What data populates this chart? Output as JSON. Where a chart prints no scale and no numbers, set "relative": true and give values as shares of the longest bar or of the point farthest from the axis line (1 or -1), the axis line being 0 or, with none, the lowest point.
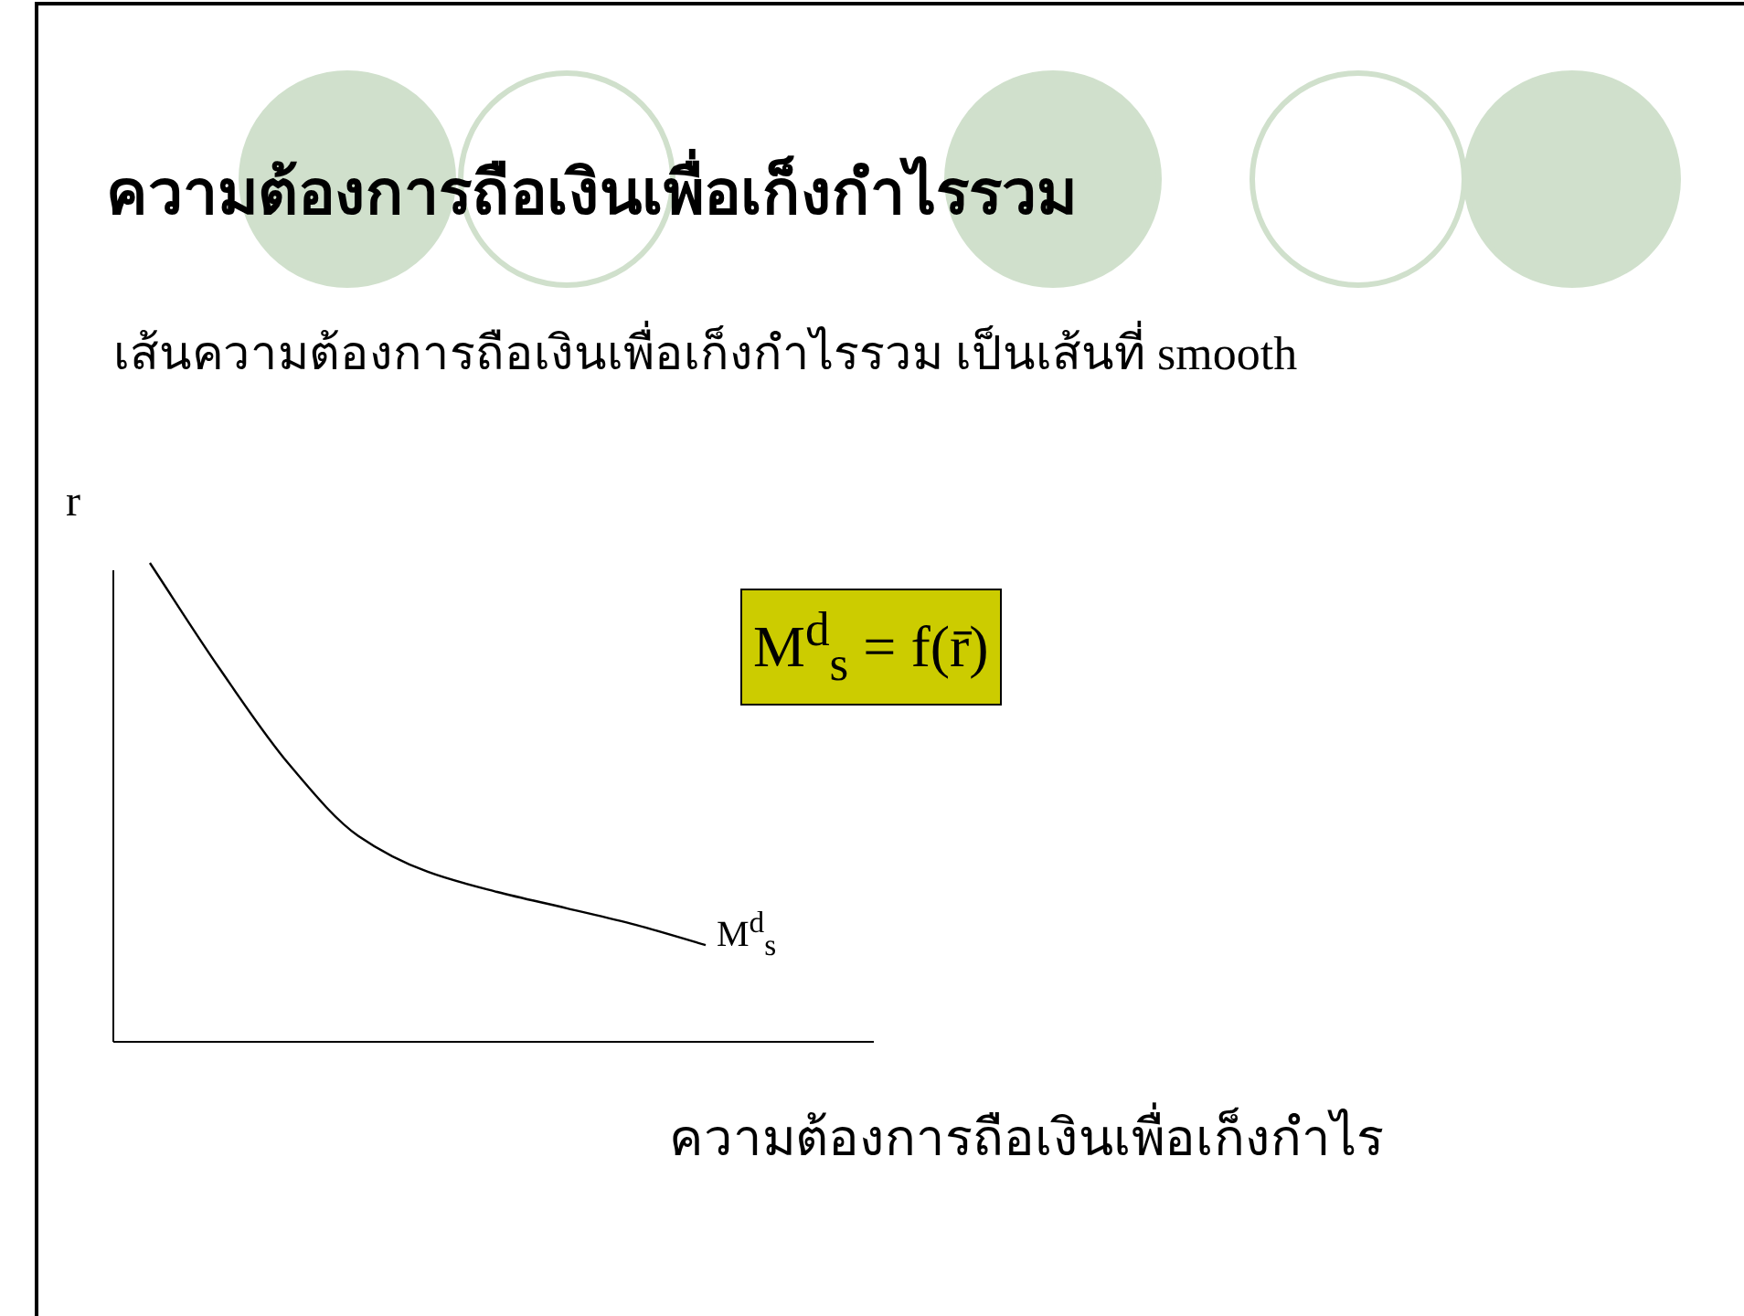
{
  "chart_data": {
    "type": "line",
    "title": "ความต้องการถือเงินเพื่อเก็งกำไรรวม",
    "subtitle": "เส้นความต้องการถือเงินเพื่อเก็งกำไรรวม เป็นเส้นที่ smooth",
    "ylabel": "r",
    "xlabel": "ความต้องการถือเงินเพื่อเก็งกำไร",
    "relative": true,
    "categories": [
      null,
      null,
      null,
      null,
      null,
      null,
      null,
      null,
      null
    ],
    "series": [
      {
        "name": "M$^{d}$$_{s}$",
        "color": "#000000",
        "values": [
          1,
          0.78,
          0.58,
          0.43,
          0.355,
          0.313,
          0.279,
          0.244,
          0.202
        ]
      }
    ],
    "annotations": [
      "M$^{d}$$_{s}$ = f(r̄)"
    ],
    "marker": "none",
    "line_style": "solid"
  }
}
